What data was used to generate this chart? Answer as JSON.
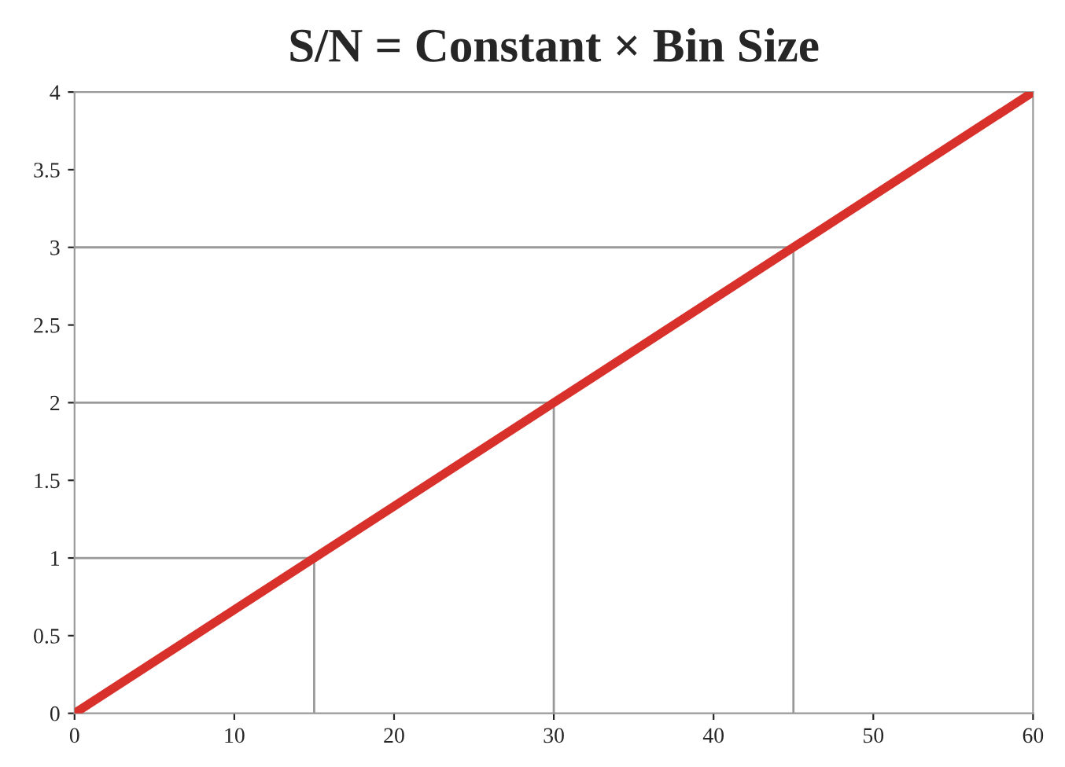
{
  "chart_data": {
    "type": "line",
    "title": "S/N = Constant × Bin Size",
    "series": [
      {
        "color": "#d8312c",
        "x": [
          0,
          60
        ],
        "values": [
          0,
          4
        ]
      },
      {
        "color": "#999999",
        "x": [
          0,
          15,
          15
        ],
        "values": [
          1,
          1,
          0
        ]
      },
      {
        "color": "#999999",
        "x": [
          0,
          30,
          30
        ],
        "values": [
          2,
          2,
          0
        ]
      },
      {
        "color": "#999999",
        "x": [
          0,
          45,
          45
        ],
        "values": [
          3,
          3,
          0
        ]
      }
    ],
    "xlim": [
      0,
      60
    ],
    "ylim": [
      0,
      4
    ],
    "xticks": [
      0,
      10,
      20,
      30,
      40,
      50,
      60
    ],
    "yticks": [
      0,
      0.5,
      1,
      1.5,
      2,
      2.5,
      3,
      3.5,
      4
    ],
    "grid": false,
    "legend": false,
    "marker": "none",
    "line_style": "solid"
  }
}
